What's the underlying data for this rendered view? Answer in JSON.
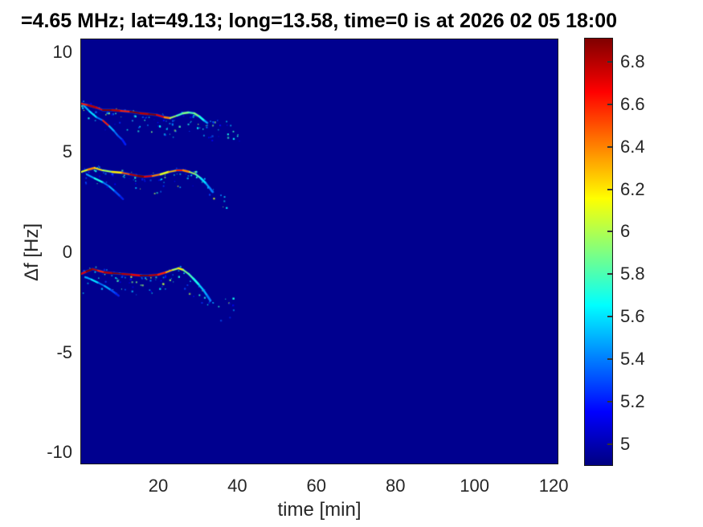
{
  "chart_data": {
    "type": "heatmap",
    "title": "=4.65 MHz;  lat=49.13; long=13.58, time=0 is at 2026 02 05 18:00",
    "xlabel": "time [min]",
    "ylabel": "Δf [Hz]",
    "xlim": [
      0.5,
      121
    ],
    "ylim": [
      -10.55,
      10.63
    ],
    "xticks": [
      20,
      40,
      60,
      80,
      100,
      120
    ],
    "yticks": [
      10,
      5,
      0,
      -5,
      -10
    ],
    "grid": false,
    "colorbar": {
      "position": "right",
      "colormap": "jet",
      "min": 4.9,
      "max": 6.91,
      "ticks": [
        5,
        5.2,
        5.4,
        5.6,
        5.8,
        6,
        6.2,
        6.4,
        6.6,
        6.8
      ]
    },
    "background_value": 4.93,
    "bands": [
      {
        "name": "upper-trace ~+7 Hz",
        "main": [
          [
            0.5,
            7.42,
            6.2
          ],
          [
            2.3,
            7.34,
            6.6
          ],
          [
            4.4,
            7.22,
            6.8
          ],
          [
            6,
            7.1,
            6.7
          ],
          [
            8.4,
            7.1,
            6.9
          ],
          [
            10.5,
            7.06,
            6.8
          ],
          [
            12.9,
            7.02,
            6.6
          ],
          [
            15.5,
            6.94,
            6.9
          ],
          [
            17.6,
            6.9,
            6.8
          ],
          [
            19.6,
            6.86,
            6.9
          ],
          [
            21.6,
            6.74,
            6.7
          ],
          [
            23,
            6.7,
            6.4
          ],
          [
            24.7,
            6.82,
            6.0
          ],
          [
            26.3,
            6.94,
            5.8
          ],
          [
            27.7,
            6.98,
            5.9
          ],
          [
            29.1,
            6.94,
            5.8
          ],
          [
            30.4,
            6.78,
            5.9
          ],
          [
            31.6,
            6.58,
            5.7
          ],
          [
            32.4,
            6.46,
            5.5
          ]
        ],
        "branch": [
          [
            1.1,
            7.34,
            5.7
          ],
          [
            2.7,
            7.02,
            5.5
          ],
          [
            4.4,
            6.74,
            5.6
          ],
          [
            6,
            6.58,
            5.4
          ],
          [
            7.6,
            6.3,
            6.6
          ],
          [
            8.8,
            6.06,
            5.5
          ],
          [
            9.8,
            5.82,
            5.4
          ],
          [
            10.9,
            5.62,
            5.3
          ],
          [
            11.7,
            5.38,
            5.2
          ]
        ],
        "scatter": {
          "seed": 7,
          "count": 110,
          "t_extend": 8,
          "df_spread": 0.9
        }
      },
      {
        "name": "middle-trace ~+4 Hz",
        "main": [
          [
            0.5,
            4.01,
            6.3
          ],
          [
            2.3,
            4.13,
            6.1
          ],
          [
            3.9,
            4.21,
            6.4
          ],
          [
            6,
            4.09,
            6.2
          ],
          [
            8.4,
            4.01,
            6.0
          ],
          [
            10.9,
            3.97,
            6.2
          ],
          [
            12.9,
            3.89,
            6.5
          ],
          [
            14.9,
            3.81,
            6.8
          ],
          [
            16.5,
            3.77,
            6.9
          ],
          [
            18.6,
            3.81,
            6.7
          ],
          [
            20.6,
            3.89,
            6.4
          ],
          [
            22.6,
            4.01,
            6.1
          ],
          [
            24.7,
            4.09,
            6.3
          ],
          [
            26.3,
            4.09,
            6.6
          ],
          [
            27.9,
            4.01,
            6.4
          ],
          [
            29.5,
            3.89,
            6.0
          ],
          [
            30.8,
            3.69,
            5.8
          ],
          [
            32,
            3.45,
            5.6
          ],
          [
            33,
            3.21,
            5.5
          ],
          [
            33.8,
            3.01,
            5.4
          ]
        ],
        "branch": [
          [
            1.9,
            3.89,
            5.6
          ],
          [
            3.9,
            3.69,
            5.5
          ],
          [
            6,
            3.49,
            5.7
          ],
          [
            7.6,
            3.29,
            5.4
          ],
          [
            9,
            3.05,
            5.5
          ],
          [
            10.3,
            2.81,
            5.3
          ],
          [
            11.1,
            2.65,
            5.2
          ]
        ],
        "scatter": {
          "seed": 13,
          "count": 85,
          "t_extend": 4,
          "df_spread": 0.8
        }
      },
      {
        "name": "lower-trace ~-1 Hz",
        "main": [
          [
            0.5,
            -1.08,
            6.4
          ],
          [
            1.9,
            -0.96,
            6.7
          ],
          [
            3.4,
            -0.84,
            6.9
          ],
          [
            4.8,
            -0.92,
            6.8
          ],
          [
            6.4,
            -1.0,
            6.6
          ],
          [
            8.4,
            -1.04,
            6.8
          ],
          [
            10.9,
            -1.08,
            6.9
          ],
          [
            13.3,
            -1.12,
            6.8
          ],
          [
            15.5,
            -1.16,
            6.7
          ],
          [
            17.8,
            -1.16,
            6.9
          ],
          [
            20,
            -1.12,
            6.8
          ],
          [
            22,
            -1.0,
            6.6
          ],
          [
            23.7,
            -0.88,
            6.3
          ],
          [
            25.1,
            -0.8,
            6.0
          ],
          [
            26.3,
            -0.88,
            6.2
          ],
          [
            27.7,
            -1.08,
            5.9
          ],
          [
            28.9,
            -1.32,
            5.8
          ],
          [
            30.2,
            -1.6,
            5.7
          ],
          [
            31.4,
            -1.88,
            5.6
          ],
          [
            32.4,
            -2.17,
            5.5
          ],
          [
            33.2,
            -2.41,
            5.4
          ]
        ],
        "branch": [
          [
            1.5,
            -1.24,
            5.6
          ],
          [
            3.1,
            -1.36,
            5.5
          ],
          [
            4.8,
            -1.52,
            5.6
          ],
          [
            6.4,
            -1.68,
            5.4
          ],
          [
            8,
            -1.88,
            5.5
          ],
          [
            9.2,
            -2.05,
            5.3
          ],
          [
            10,
            -2.17,
            5.2
          ]
        ],
        "scatter": {
          "seed": 29,
          "count": 100,
          "t_extend": 6,
          "df_spread": 0.9
        }
      }
    ]
  }
}
